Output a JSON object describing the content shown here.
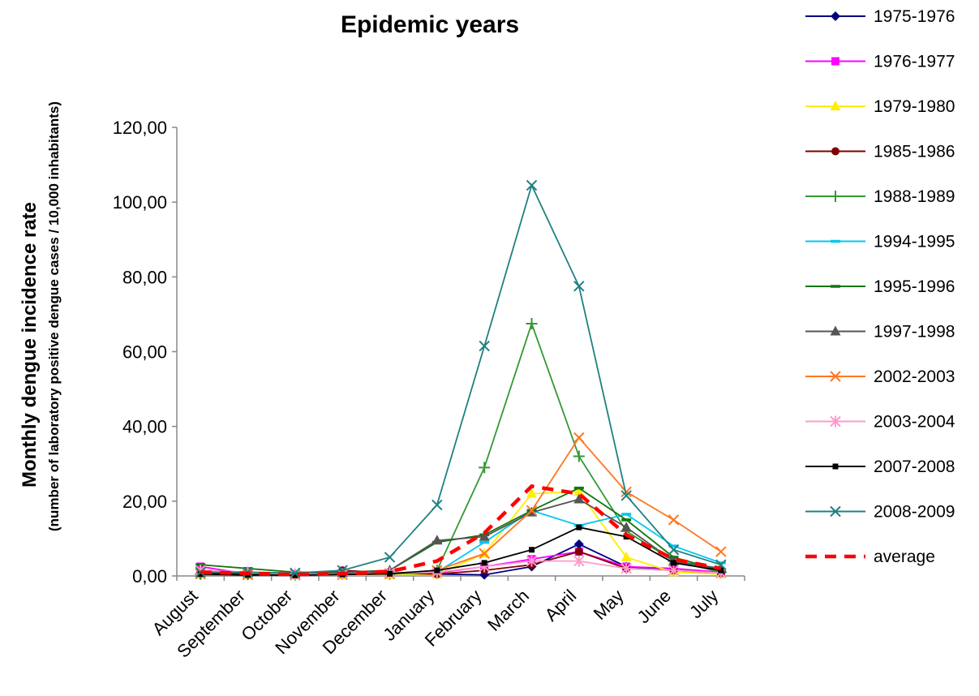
{
  "chart_data": {
    "type": "line",
    "title": "Epidemic years",
    "ylabel": "Monthly dengue incidence rate",
    "ylabel_sub": "(number of laboratory positive dengue cases / 10,000 inhabitants)",
    "xlabel": "",
    "ylim": [
      0,
      120
    ],
    "yticks": [
      "0,00",
      "20,00",
      "40,00",
      "60,00",
      "80,00",
      "100,00",
      "120,00"
    ],
    "grid": false,
    "legend_position": "right",
    "categories": [
      "August",
      "September",
      "October",
      "November",
      "December",
      "January",
      "February",
      "March",
      "April",
      "May",
      "June",
      "July"
    ],
    "series": [
      {
        "name": "1975-1976",
        "color": "#000080",
        "marker": "diamond",
        "dashed": false,
        "values": [
          0.3,
          0.2,
          0.2,
          0.3,
          0.4,
          0.5,
          0.3,
          2.5,
          8.5,
          2.5,
          1.5,
          0.8
        ]
      },
      {
        "name": "1976-1977",
        "color": "#ff00ff",
        "marker": "square",
        "dashed": false,
        "values": [
          2.5,
          0.5,
          0.3,
          0.3,
          0.6,
          0.8,
          2.5,
          4.5,
          6.5,
          2.5,
          2.0,
          1.0
        ]
      },
      {
        "name": "1979-1980",
        "color": "#ffee00",
        "marker": "triangle",
        "dashed": false,
        "values": [
          0.5,
          0.4,
          0.3,
          0.2,
          0.3,
          0.4,
          6.0,
          22.0,
          22.5,
          5.0,
          1.0,
          0.5
        ]
      },
      {
        "name": "1985-1986",
        "color": "#800000",
        "marker": "circle",
        "dashed": false,
        "values": [
          1.0,
          0.5,
          0.3,
          1.5,
          0.8,
          0.5,
          1.5,
          3.0,
          6.5,
          2.0,
          1.5,
          0.8
        ]
      },
      {
        "name": "1988-1989",
        "color": "#339933",
        "marker": "plus",
        "dashed": false,
        "values": [
          0.5,
          0.4,
          0.3,
          0.5,
          0.5,
          1.5,
          29.0,
          67.5,
          32.0,
          12.0,
          4.0,
          1.0
        ]
      },
      {
        "name": "1994-1995",
        "color": "#00c8ef",
        "marker": "dash",
        "dashed": false,
        "values": [
          0.3,
          0.3,
          0.2,
          0.3,
          0.5,
          1.0,
          9.0,
          17.5,
          13.5,
          16.5,
          8.0,
          3.5
        ]
      },
      {
        "name": "1995-1996",
        "color": "#117711",
        "marker": "dash",
        "dashed": false,
        "values": [
          3.0,
          2.0,
          1.0,
          1.0,
          1.5,
          9.0,
          11.0,
          17.5,
          23.5,
          15.0,
          5.0,
          1.5
        ]
      },
      {
        "name": "1997-1998",
        "color": "#555555",
        "marker": "triangle",
        "dashed": false,
        "values": [
          1.5,
          1.0,
          0.5,
          0.8,
          1.5,
          9.5,
          10.5,
          17.0,
          20.5,
          13.0,
          4.0,
          2.0
        ]
      },
      {
        "name": "2002-2003",
        "color": "#ff7722",
        "marker": "x",
        "dashed": false,
        "values": [
          0.5,
          0.3,
          0.2,
          0.3,
          0.5,
          1.5,
          6.0,
          17.5,
          37.0,
          22.5,
          15.0,
          6.5
        ]
      },
      {
        "name": "2003-2004",
        "color": "#ff99cc",
        "marker": "star",
        "dashed": false,
        "values": [
          1.5,
          1.0,
          0.5,
          0.5,
          0.8,
          1.0,
          2.5,
          4.0,
          4.0,
          2.0,
          1.5,
          0.8
        ]
      },
      {
        "name": "2007-2008",
        "color": "#000000",
        "marker": "smallsquare",
        "dashed": false,
        "values": [
          0.5,
          0.3,
          0.2,
          0.4,
          0.6,
          1.5,
          3.5,
          7.0,
          13.0,
          10.5,
          3.5,
          1.5
        ]
      },
      {
        "name": "2008-2009",
        "color": "#208080",
        "marker": "x",
        "dashed": false,
        "values": [
          1.0,
          1.0,
          0.8,
          1.5,
          5.0,
          19.0,
          61.5,
          104.5,
          77.5,
          21.5,
          7.0,
          3.0
        ]
      },
      {
        "name": "average",
        "color": "#ff0000",
        "marker": "none",
        "dashed": true,
        "values": [
          1.0,
          0.7,
          0.4,
          0.6,
          1.2,
          4.0,
          11.5,
          24.0,
          22.0,
          11.0,
          4.5,
          2.0
        ]
      }
    ]
  }
}
